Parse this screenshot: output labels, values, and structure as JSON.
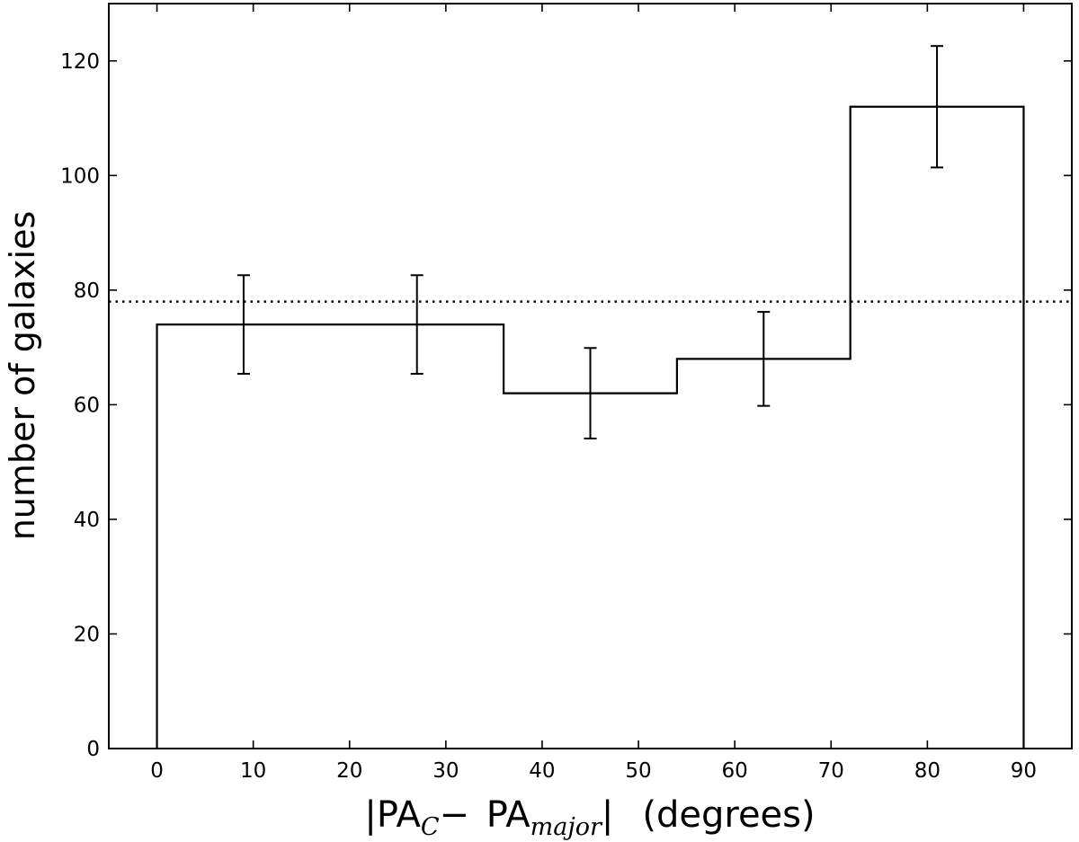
{
  "chart_data": {
    "type": "bar",
    "style": "step-histogram",
    "bin_edges": [
      0,
      18,
      36,
      54,
      72,
      90
    ],
    "values": [
      74,
      74,
      62,
      68,
      112
    ],
    "errors": [
      8.6,
      8.6,
      7.9,
      8.2,
      10.6
    ],
    "errorbar_x": [
      9,
      27,
      45,
      63,
      81
    ],
    "reference_line": {
      "y": 78,
      "style": "dotted"
    },
    "xlim": [
      -5,
      95
    ],
    "ylim": [
      0,
      130
    ],
    "xticks": [
      "0",
      "10",
      "20",
      "30",
      "40",
      "50",
      "60",
      "70",
      "80",
      "90"
    ],
    "yticks": [
      "0",
      "20",
      "40",
      "60",
      "80",
      "100",
      "120"
    ],
    "ylabel": "number of galaxies",
    "xlabel": {
      "bar_left": "|",
      "pa1": "PA",
      "sub1": "C",
      "minus": "− ",
      "pa2": "PA",
      "sub2": "major",
      "bar_right": "|",
      "units": "(degrees)"
    },
    "grid": false,
    "legend": "none"
  }
}
